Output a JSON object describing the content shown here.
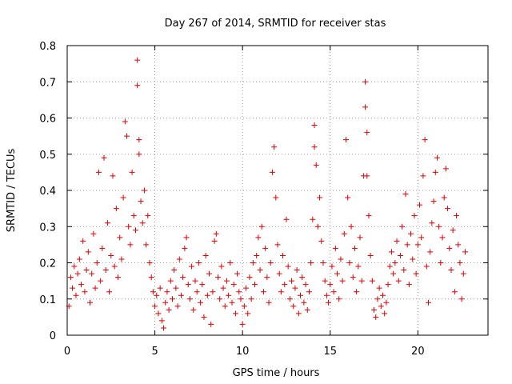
{
  "chart_data": {
    "type": "scatter",
    "title": "Day 267 of 2014, SRMTID for receiver stas",
    "xlabel": "GPS time / hours",
    "ylabel": "SRMTID / TECUs",
    "xlim": [
      0,
      24
    ],
    "ylim": [
      0,
      0.8
    ],
    "x_ticks": [
      0,
      5,
      10,
      15,
      20
    ],
    "x_tick_labels": [
      "0",
      "5",
      "10",
      "15",
      "20"
    ],
    "y_ticks": [
      0,
      0.1,
      0.2,
      0.3,
      0.4,
      0.5,
      0.6,
      0.7,
      0.8
    ],
    "y_tick_labels": [
      "0",
      "0.1",
      "0.2",
      "0.3",
      "0.4",
      "0.5",
      "0.6",
      "0.7",
      "0.8"
    ],
    "grid": true,
    "marker": "+",
    "color": "#e00000",
    "series": [
      {
        "name": "stas",
        "points": [
          [
            0.1,
            0.08
          ],
          [
            0.2,
            0.16
          ],
          [
            0.3,
            0.13
          ],
          [
            0.4,
            0.19
          ],
          [
            0.5,
            0.11
          ],
          [
            0.6,
            0.17
          ],
          [
            0.7,
            0.21
          ],
          [
            0.8,
            0.14
          ],
          [
            0.9,
            0.26
          ],
          [
            1.0,
            0.12
          ],
          [
            1.1,
            0.18
          ],
          [
            1.2,
            0.23
          ],
          [
            1.3,
            0.09
          ],
          [
            1.4,
            0.17
          ],
          [
            1.5,
            0.28
          ],
          [
            1.6,
            0.13
          ],
          [
            1.7,
            0.2
          ],
          [
            1.8,
            0.45
          ],
          [
            1.9,
            0.15
          ],
          [
            2.0,
            0.24
          ],
          [
            2.1,
            0.49
          ],
          [
            2.2,
            0.18
          ],
          [
            2.3,
            0.31
          ],
          [
            2.4,
            0.12
          ],
          [
            2.5,
            0.22
          ],
          [
            2.6,
            0.44
          ],
          [
            2.7,
            0.19
          ],
          [
            2.8,
            0.35
          ],
          [
            2.9,
            0.16
          ],
          [
            3.0,
            0.27
          ],
          [
            3.1,
            0.21
          ],
          [
            3.2,
            0.38
          ],
          [
            3.3,
            0.59
          ],
          [
            3.4,
            0.55
          ],
          [
            3.5,
            0.3
          ],
          [
            3.6,
            0.25
          ],
          [
            3.7,
            0.45
          ],
          [
            3.8,
            0.33
          ],
          [
            3.9,
            0.29
          ],
          [
            4.0,
            0.76
          ],
          [
            4.0,
            0.69
          ],
          [
            4.1,
            0.54
          ],
          [
            4.1,
            0.5
          ],
          [
            4.2,
            0.37
          ],
          [
            4.3,
            0.31
          ],
          [
            4.4,
            0.4
          ],
          [
            4.5,
            0.25
          ],
          [
            4.6,
            0.33
          ],
          [
            4.7,
            0.2
          ],
          [
            4.8,
            0.16
          ],
          [
            4.9,
            0.12
          ],
          [
            5.0,
            0.08
          ],
          [
            5.1,
            0.11
          ],
          [
            5.2,
            0.06
          ],
          [
            5.3,
            0.13
          ],
          [
            5.4,
            0.04
          ],
          [
            5.5,
            0.02
          ],
          [
            5.6,
            0.09
          ],
          [
            5.7,
            0.12
          ],
          [
            5.8,
            0.07
          ],
          [
            5.9,
            0.15
          ],
          [
            6.0,
            0.1
          ],
          [
            6.1,
            0.18
          ],
          [
            6.2,
            0.13
          ],
          [
            6.3,
            0.08
          ],
          [
            6.4,
            0.21
          ],
          [
            6.5,
            0.11
          ],
          [
            6.6,
            0.16
          ],
          [
            6.7,
            0.24
          ],
          [
            6.8,
            0.27
          ],
          [
            6.9,
            0.14
          ],
          [
            7.0,
            0.1
          ],
          [
            7.1,
            0.19
          ],
          [
            7.2,
            0.07
          ],
          [
            7.3,
            0.15
          ],
          [
            7.4,
            0.12
          ],
          [
            7.5,
            0.2
          ],
          [
            7.6,
            0.09
          ],
          [
            7.7,
            0.14
          ],
          [
            7.8,
            0.05
          ],
          [
            7.9,
            0.22
          ],
          [
            8.0,
            0.11
          ],
          [
            8.1,
            0.17
          ],
          [
            8.2,
            0.03
          ],
          [
            8.3,
            0.12
          ],
          [
            8.4,
            0.26
          ],
          [
            8.5,
            0.28
          ],
          [
            8.6,
            0.16
          ],
          [
            8.7,
            0.1
          ],
          [
            8.8,
            0.19
          ],
          [
            8.9,
            0.13
          ],
          [
            9.0,
            0.08
          ],
          [
            9.1,
            0.15
          ],
          [
            9.2,
            0.11
          ],
          [
            9.3,
            0.2
          ],
          [
            9.4,
            0.09
          ],
          [
            9.5,
            0.14
          ],
          [
            9.6,
            0.06
          ],
          [
            9.7,
            0.17
          ],
          [
            9.8,
            0.12
          ],
          [
            9.9,
            0.1
          ],
          [
            10.0,
            0.03
          ],
          [
            10.1,
            0.08
          ],
          [
            10.2,
            0.13
          ],
          [
            10.3,
            0.06
          ],
          [
            10.4,
            0.16
          ],
          [
            10.5,
            0.1
          ],
          [
            10.6,
            0.2
          ],
          [
            10.7,
            0.14
          ],
          [
            10.8,
            0.22
          ],
          [
            10.9,
            0.27
          ],
          [
            11.0,
            0.18
          ],
          [
            11.1,
            0.3
          ],
          [
            11.2,
            0.12
          ],
          [
            11.3,
            0.24
          ],
          [
            11.4,
            0.16
          ],
          [
            11.5,
            0.09
          ],
          [
            11.6,
            0.2
          ],
          [
            11.7,
            0.45
          ],
          [
            11.8,
            0.52
          ],
          [
            11.9,
            0.38
          ],
          [
            12.0,
            0.25
          ],
          [
            12.1,
            0.17
          ],
          [
            12.2,
            0.12
          ],
          [
            12.3,
            0.22
          ],
          [
            12.4,
            0.14
          ],
          [
            12.5,
            0.32
          ],
          [
            12.6,
            0.19
          ],
          [
            12.7,
            0.1
          ],
          [
            12.8,
            0.15
          ],
          [
            12.9,
            0.08
          ],
          [
            13.0,
            0.13
          ],
          [
            13.1,
            0.18
          ],
          [
            13.2,
            0.06
          ],
          [
            13.3,
            0.11
          ],
          [
            13.4,
            0.16
          ],
          [
            13.5,
            0.09
          ],
          [
            13.6,
            0.14
          ],
          [
            13.7,
            0.07
          ],
          [
            13.8,
            0.12
          ],
          [
            13.9,
            0.2
          ],
          [
            14.0,
            0.32
          ],
          [
            14.1,
            0.58
          ],
          [
            14.1,
            0.52
          ],
          [
            14.2,
            0.47
          ],
          [
            14.3,
            0.3
          ],
          [
            14.4,
            0.38
          ],
          [
            14.5,
            0.26
          ],
          [
            14.6,
            0.2
          ],
          [
            14.7,
            0.15
          ],
          [
            14.8,
            0.11
          ],
          [
            14.9,
            0.09
          ],
          [
            15.0,
            0.14
          ],
          [
            15.1,
            0.19
          ],
          [
            15.2,
            0.12
          ],
          [
            15.3,
            0.24
          ],
          [
            15.4,
            0.17
          ],
          [
            15.5,
            0.1
          ],
          [
            15.6,
            0.21
          ],
          [
            15.7,
            0.15
          ],
          [
            15.8,
            0.28
          ],
          [
            15.9,
            0.54
          ],
          [
            16.0,
            0.38
          ],
          [
            16.1,
            0.2
          ],
          [
            16.2,
            0.3
          ],
          [
            16.3,
            0.16
          ],
          [
            16.4,
            0.24
          ],
          [
            16.5,
            0.12
          ],
          [
            16.6,
            0.19
          ],
          [
            16.7,
            0.27
          ],
          [
            16.8,
            0.15
          ],
          [
            16.9,
            0.44
          ],
          [
            17.0,
            0.7
          ],
          [
            17.0,
            0.63
          ],
          [
            17.1,
            0.56
          ],
          [
            17.1,
            0.44
          ],
          [
            17.2,
            0.33
          ],
          [
            17.3,
            0.22
          ],
          [
            17.4,
            0.15
          ],
          [
            17.5,
            0.07
          ],
          [
            17.6,
            0.05
          ],
          [
            17.7,
            0.1
          ],
          [
            17.8,
            0.13
          ],
          [
            17.9,
            0.08
          ],
          [
            18.0,
            0.11
          ],
          [
            18.1,
            0.06
          ],
          [
            18.2,
            0.09
          ],
          [
            18.3,
            0.14
          ],
          [
            18.4,
            0.19
          ],
          [
            18.5,
            0.23
          ],
          [
            18.6,
            0.17
          ],
          [
            18.7,
            0.2
          ],
          [
            18.8,
            0.26
          ],
          [
            18.9,
            0.15
          ],
          [
            19.0,
            0.22
          ],
          [
            19.1,
            0.3
          ],
          [
            19.2,
            0.18
          ],
          [
            19.3,
            0.39
          ],
          [
            19.4,
            0.25
          ],
          [
            19.5,
            0.14
          ],
          [
            19.6,
            0.28
          ],
          [
            19.7,
            0.21
          ],
          [
            19.8,
            0.33
          ],
          [
            19.9,
            0.17
          ],
          [
            20.0,
            0.25
          ],
          [
            20.1,
            0.36
          ],
          [
            20.2,
            0.27
          ],
          [
            20.3,
            0.44
          ],
          [
            20.4,
            0.54
          ],
          [
            20.5,
            0.19
          ],
          [
            20.6,
            0.09
          ],
          [
            20.7,
            0.23
          ],
          [
            20.8,
            0.31
          ],
          [
            20.9,
            0.37
          ],
          [
            21.0,
            0.45
          ],
          [
            21.1,
            0.49
          ],
          [
            21.2,
            0.3
          ],
          [
            21.3,
            0.2
          ],
          [
            21.4,
            0.27
          ],
          [
            21.5,
            0.38
          ],
          [
            21.6,
            0.46
          ],
          [
            21.7,
            0.35
          ],
          [
            21.8,
            0.24
          ],
          [
            21.9,
            0.18
          ],
          [
            22.0,
            0.29
          ],
          [
            22.1,
            0.12
          ],
          [
            22.2,
            0.33
          ],
          [
            22.3,
            0.25
          ],
          [
            22.4,
            0.2
          ],
          [
            22.5,
            0.1
          ],
          [
            22.6,
            0.17
          ],
          [
            22.7,
            0.23
          ]
        ]
      }
    ]
  }
}
